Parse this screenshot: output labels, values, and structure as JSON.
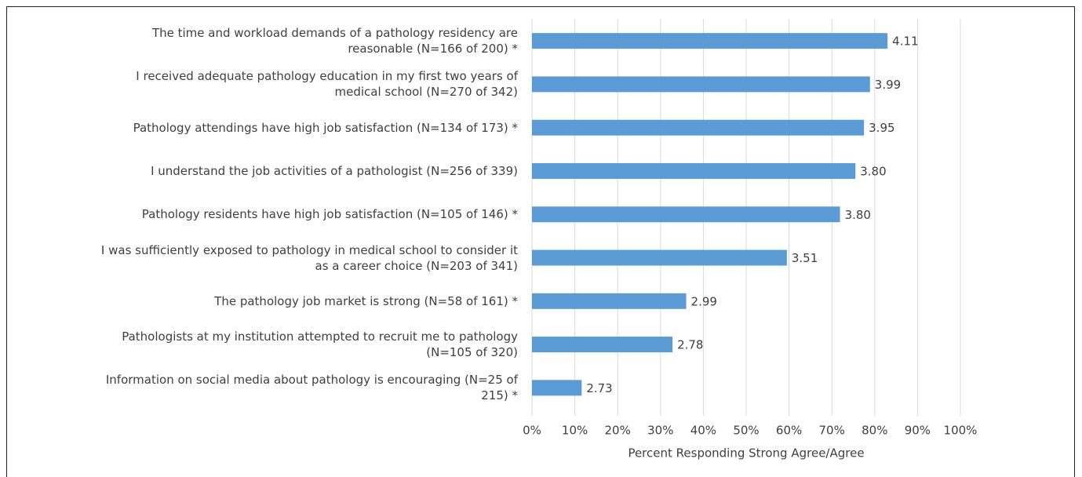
{
  "chart_data": {
    "type": "bar",
    "orientation": "horizontal",
    "x_label": "Percent Responding Strong Agree/Agree",
    "categories": [
      "The time and workload demands of a pathology residency are reasonable (N=166 of 200) *",
      "I received adequate pathology education in my first two years of medical school (N=270 of 342)",
      "Pathology attendings have high job satisfaction (N=134 of 173) *",
      "I understand the job activities of a pathologist (N=256 of 339)",
      "Pathology residents have high job satisfaction (N=105 of 146) *",
      "I was sufficiently exposed to pathology in medical school to consider it as a career choice (N=203 of 341)",
      "The pathology job market is strong (N=58 of 161) *",
      "Pathologists at my institution attempted to recruit me to pathology (N=105 of 320)",
      "Information on social media about pathology is encouraging (N=25 of 215) *"
    ],
    "values": [
      83.0,
      78.9,
      77.5,
      75.5,
      71.9,
      59.5,
      36.0,
      32.8,
      11.6
    ],
    "bar_annotations": [
      "4.11",
      "3.99",
      "3.95",
      "3.80",
      "3.80",
      "3.51",
      "2.99",
      "2.78",
      "2.73"
    ],
    "color": "#5b9bd5",
    "xlim": [
      0,
      100
    ],
    "xticks": [
      {
        "value": 0,
        "label": "0%"
      },
      {
        "value": 10,
        "label": "10%"
      },
      {
        "value": 20,
        "label": "20%"
      },
      {
        "value": 30,
        "label": "30%"
      },
      {
        "value": 40,
        "label": "40%"
      },
      {
        "value": 50,
        "label": "50%"
      },
      {
        "value": 60,
        "label": "60%"
      },
      {
        "value": 70,
        "label": "70%"
      },
      {
        "value": 80,
        "label": "80%"
      },
      {
        "value": 90,
        "label": "90%"
      },
      {
        "value": 100,
        "label": "100%"
      }
    ],
    "grid": true
  }
}
